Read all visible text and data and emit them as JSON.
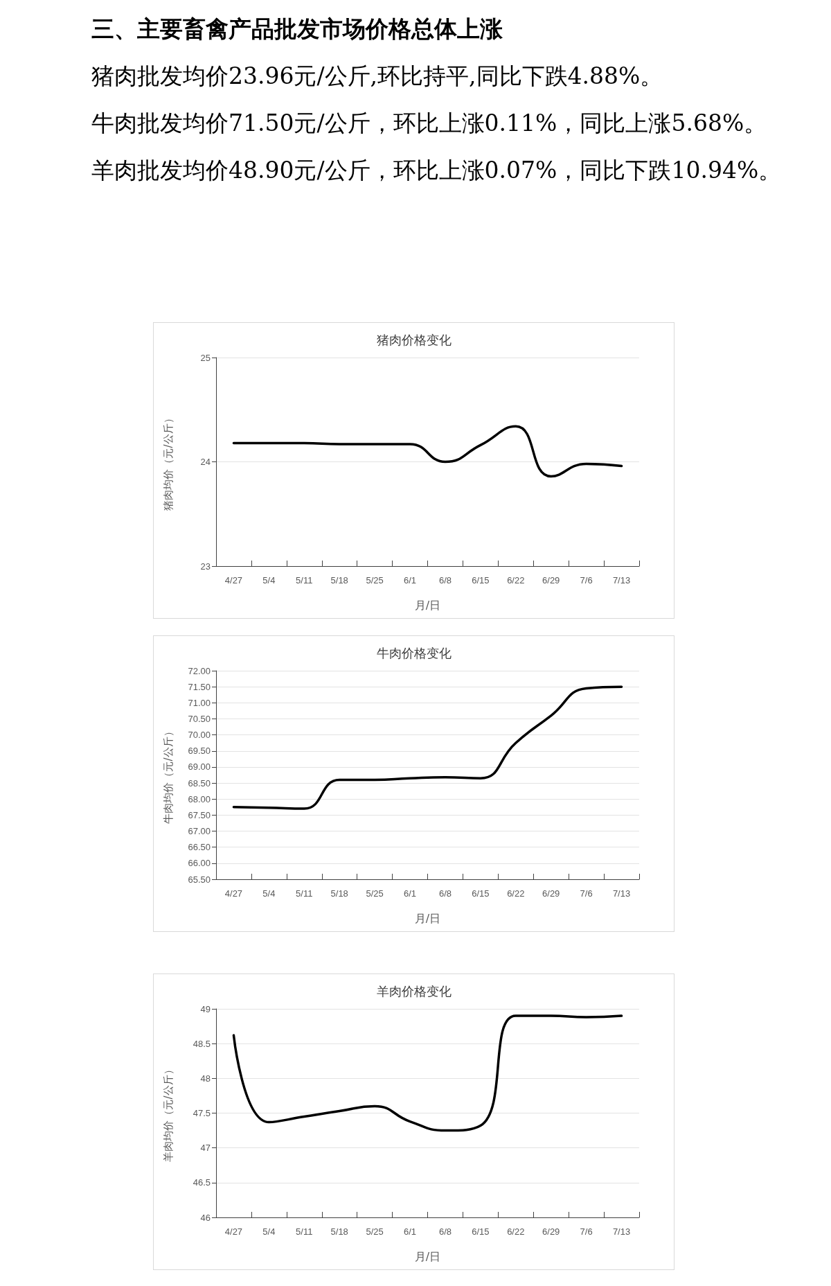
{
  "chart_data": [
    {
      "type": "line",
      "title": "猪肉价格变化",
      "xlabel": "月/日",
      "ylabel": "猪肉均价（元/公斤）",
      "annotations": [
        "三、主要畜禽产品批发市场价格总体上涨",
        "猪肉批发均价23.96元/公斤,环比持平,同比下跌4.88%。",
        "牛肉批发均价71.50元/公斤，环比上涨0.11%，同比上涨5.68%。",
        "羊肉批发均价48.90元/公斤，环比上涨0.07%，同比下跌10.94%。"
      ],
      "categories": [
        "4/27",
        "5/4",
        "5/11",
        "5/18",
        "5/25",
        "6/1",
        "6/8",
        "6/15",
        "6/22",
        "6/29",
        "7/6",
        "7/13"
      ],
      "series": [
        {
          "color": "#000000",
          "values": [
            24.18,
            24.18,
            24.18,
            24.17,
            24.17,
            24.17,
            24.0,
            24.16,
            24.34,
            23.86,
            23.98,
            23.96
          ]
        }
      ],
      "ylim": [
        23,
        25
      ],
      "yticks": [
        23,
        24,
        25
      ],
      "grid": "y",
      "marker": "none",
      "line_style": "solid"
    },
    {
      "type": "line",
      "title": "牛肉价格变化",
      "xlabel": "月/日",
      "ylabel": "牛肉均价（元/公斤）",
      "categories": [
        "4/27",
        "5/4",
        "5/11",
        "5/18",
        "5/25",
        "6/1",
        "6/8",
        "6/15",
        "6/22",
        "6/29",
        "7/6",
        "7/13"
      ],
      "series": [
        {
          "color": "#000000",
          "values": [
            67.75,
            67.73,
            67.7,
            68.6,
            68.6,
            68.65,
            68.68,
            68.65,
            69.75,
            70.6,
            71.45,
            71.5
          ]
        }
      ],
      "ylim": [
        65.5,
        72
      ],
      "yticks": [
        {
          "value": 65.5,
          "label": "65.50"
        },
        {
          "value": 66,
          "label": "66.00"
        },
        {
          "value": 66.5,
          "label": "66.50"
        },
        {
          "value": 67,
          "label": "67.00"
        },
        {
          "value": 67.5,
          "label": "67.50"
        },
        {
          "value": 68,
          "label": "68.00"
        },
        {
          "value": 68.5,
          "label": "68.50"
        },
        {
          "value": 69,
          "label": "69.00"
        },
        {
          "value": 69.5,
          "label": "69.50"
        },
        {
          "value": 70,
          "label": "70.00"
        },
        {
          "value": 70.5,
          "label": "70.50"
        },
        {
          "value": 71,
          "label": "71.00"
        },
        {
          "value": 71.5,
          "label": "71.50"
        },
        {
          "value": 72,
          "label": "72.00"
        }
      ],
      "grid": "y",
      "marker": "none",
      "line_style": "solid"
    },
    {
      "type": "line",
      "title": "羊肉价格变化",
      "xlabel": "月/日",
      "ylabel": "羊肉均价（元/公斤）",
      "categories": [
        "4/27",
        "5/4",
        "5/11",
        "5/18",
        "5/25",
        "6/1",
        "6/8",
        "6/15",
        "6/22",
        "6/29",
        "7/6",
        "7/13"
      ],
      "series": [
        {
          "color": "#000000",
          "values": [
            48.62,
            47.37,
            47.45,
            47.53,
            47.6,
            47.38,
            47.25,
            47.32,
            48.9,
            48.9,
            48.88,
            48.9
          ]
        }
      ],
      "ylim": [
        46,
        49
      ],
      "yticks": [
        46,
        46.5,
        47,
        47.5,
        48,
        48.5,
        49
      ],
      "grid": "y",
      "marker": "none",
      "line_style": "solid"
    }
  ]
}
